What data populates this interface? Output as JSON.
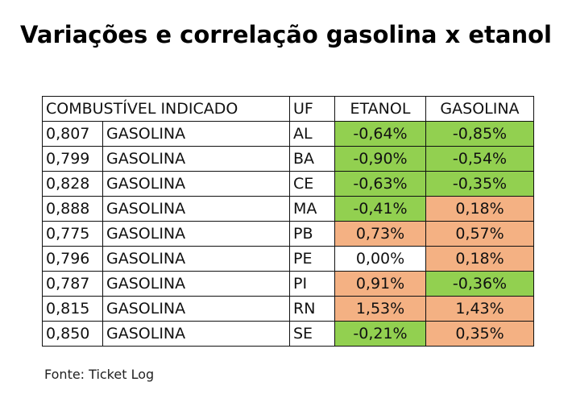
{
  "title": "Variações e correlação gasolina x etanol",
  "table": {
    "headers": {
      "combustivel": "COMBUSTÍVEL INDICADO",
      "uf": "UF",
      "etanol": "ETANOL",
      "gasolina": "GASOLINA"
    },
    "colors": {
      "green": "#92d050",
      "orange": "#f4b183",
      "white": "#ffffff"
    },
    "rows": [
      {
        "indice": "0,807",
        "combustivel": "GASOLINA",
        "uf": "AL",
        "etanol": "-0,64%",
        "gasolina": "-0,85%",
        "etanol_color": "green",
        "gasolina_color": "green"
      },
      {
        "indice": "0,799",
        "combustivel": "GASOLINA",
        "uf": "BA",
        "etanol": "-0,90%",
        "gasolina": "-0,54%",
        "etanol_color": "green",
        "gasolina_color": "green"
      },
      {
        "indice": "0,828",
        "combustivel": "GASOLINA",
        "uf": "CE",
        "etanol": "-0,63%",
        "gasolina": "-0,35%",
        "etanol_color": "green",
        "gasolina_color": "green"
      },
      {
        "indice": "0,888",
        "combustivel": "GASOLINA",
        "uf": "MA",
        "etanol": "-0,41%",
        "gasolina": "0,18%",
        "etanol_color": "green",
        "gasolina_color": "orange"
      },
      {
        "indice": "0,775",
        "combustivel": "GASOLINA",
        "uf": "PB",
        "etanol": "0,73%",
        "gasolina": "0,57%",
        "etanol_color": "orange",
        "gasolina_color": "orange"
      },
      {
        "indice": "0,796",
        "combustivel": "GASOLINA",
        "uf": "PE",
        "etanol": "0,00%",
        "gasolina": "0,18%",
        "etanol_color": "white",
        "gasolina_color": "orange"
      },
      {
        "indice": "0,787",
        "combustivel": "GASOLINA",
        "uf": "PI",
        "etanol": "0,91%",
        "gasolina": "-0,36%",
        "etanol_color": "orange",
        "gasolina_color": "green"
      },
      {
        "indice": "0,815",
        "combustivel": "GASOLINA",
        "uf": "RN",
        "etanol": "1,53%",
        "gasolina": "1,43%",
        "etanol_color": "orange",
        "gasolina_color": "orange"
      },
      {
        "indice": "0,850",
        "combustivel": "GASOLINA",
        "uf": "SE",
        "etanol": "-0,21%",
        "gasolina": "0,35%",
        "etanol_color": "green",
        "gasolina_color": "orange"
      }
    ]
  },
  "source": "Fonte: Ticket Log"
}
